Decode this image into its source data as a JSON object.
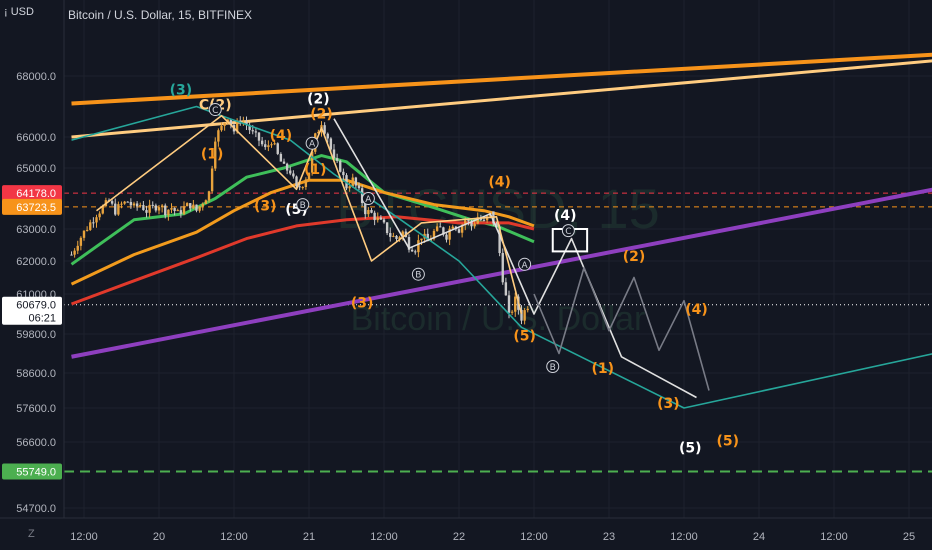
{
  "header": {
    "symbol_line": "Bitcoin / U.S. Dollar, 15, BITFINEX",
    "currency": "¡ USD",
    "zoom_mode": "Z"
  },
  "watermark": {
    "symbol": "BTCUSD, 15",
    "name": "Bitcoin / U.S. Dollar"
  },
  "colors": {
    "background": "#131722",
    "up": "#e8a33d",
    "down": "#c9c9c9",
    "sma_green": "#3fbf5a",
    "sma_orange": "#f29b1d",
    "sma_red": "#e0392b",
    "upper_channel_orange": "#f7931a",
    "upper_channel_light": "#ffcc80",
    "purple_channel": "#8e3fbf",
    "teal_wave": "#26a69a",
    "white_wave": "#e0e0e0",
    "target_green": "#4caf50"
  },
  "chart_data": {
    "type": "candlestick",
    "title": "Bitcoin / U.S. Dollar, 15, BITFINEX",
    "ylabel": "USD",
    "ylim": [
      54000,
      69000
    ],
    "y_ticks": [
      {
        "value": 68000,
        "label": "68000.0"
      },
      {
        "value": 66000,
        "label": "66000.0"
      },
      {
        "value": 65000,
        "label": "65000.0"
      },
      {
        "value": 63000,
        "label": "63000.0"
      },
      {
        "value": 62000,
        "label": "62000.0"
      },
      {
        "value": 61000,
        "label": "61000.0"
      },
      {
        "value": 59800,
        "label": "59800.0"
      },
      {
        "value": 58600,
        "label": "58600.0"
      },
      {
        "value": 57600,
        "label": "57600.0"
      },
      {
        "value": 56600,
        "label": "56600.0"
      },
      {
        "value": 54700,
        "label": "54700.0"
      }
    ],
    "x_ticks": [
      {
        "t": 12,
        "label": "12:00"
      },
      {
        "t": 24,
        "label": "20"
      },
      {
        "t": 36,
        "label": "12:00"
      },
      {
        "t": 48,
        "label": "21"
      },
      {
        "t": 60,
        "label": "12:00"
      },
      {
        "t": 72,
        "label": "22"
      },
      {
        "t": 84,
        "label": "12:00"
      },
      {
        "t": 96,
        "label": "23"
      },
      {
        "t": 108,
        "label": "12:00"
      },
      {
        "t": 120,
        "label": "24"
      },
      {
        "t": 132,
        "label": "12:00"
      },
      {
        "t": 144,
        "label": "25"
      }
    ],
    "x_unit": "hours since Nov 19 00:00",
    "price_markers": [
      {
        "value": 64178.0,
        "label": "64178.0",
        "color": "#f23645"
      },
      {
        "value": 63723.5,
        "label": "63723.5",
        "color": "#f7931a"
      },
      {
        "value": 60679.0,
        "label": "60679.0",
        "sub": "06:21",
        "color": "#ffffff"
      },
      {
        "value": 55749.0,
        "label": "55749.0",
        "color": "#4caf50"
      }
    ],
    "horizontal_lines": [
      {
        "value": 64178,
        "color": "#f23645",
        "style": "dashed"
      },
      {
        "value": 63723.5,
        "color": "#f7931a",
        "style": "dashed"
      },
      {
        "value": 60679,
        "color": "#ffffff",
        "style": "dotted"
      },
      {
        "value": 55749,
        "color": "#4caf50",
        "style": "dashed-thick"
      }
    ],
    "candles_close_path": [
      [
        10,
        62200
      ],
      [
        11,
        62600
      ],
      [
        12,
        62900
      ],
      [
        13,
        63200
      ],
      [
        14,
        63500
      ],
      [
        15,
        63700
      ],
      [
        16,
        63900
      ],
      [
        17,
        63600
      ],
      [
        18,
        63800
      ],
      [
        19,
        63900
      ],
      [
        20,
        63700
      ],
      [
        21,
        63800
      ],
      [
        22,
        63600
      ],
      [
        23,
        63700
      ],
      [
        24,
        63800
      ],
      [
        25,
        63600
      ],
      [
        26,
        63700
      ],
      [
        27,
        63500
      ],
      [
        28,
        63700
      ],
      [
        29,
        63800
      ],
      [
        30,
        63600
      ],
      [
        31,
        63900
      ],
      [
        32,
        64200
      ],
      [
        33,
        66000
      ],
      [
        34,
        66300
      ],
      [
        35,
        66700
      ],
      [
        36,
        66200
      ],
      [
        37,
        66600
      ],
      [
        38,
        66400
      ],
      [
        39,
        66100
      ],
      [
        40,
        65900
      ],
      [
        41,
        65600
      ],
      [
        42,
        65900
      ],
      [
        43,
        65400
      ],
      [
        44,
        65000
      ],
      [
        45,
        64900
      ],
      [
        46,
        64300
      ],
      [
        47,
        64500
      ],
      [
        48,
        64900
      ],
      [
        49,
        66000
      ],
      [
        50,
        66500
      ],
      [
        51,
        66000
      ],
      [
        52,
        65200
      ],
      [
        53,
        65000
      ],
      [
        54,
        64400
      ],
      [
        55,
        64600
      ],
      [
        56,
        64200
      ],
      [
        57,
        63600
      ],
      [
        58,
        63500
      ],
      [
        59,
        63300
      ],
      [
        60,
        63100
      ],
      [
        61,
        62800
      ],
      [
        62,
        62700
      ],
      [
        63,
        62900
      ],
      [
        64,
        62500
      ],
      [
        65,
        62400
      ],
      [
        66,
        62800
      ],
      [
        67,
        62600
      ],
      [
        68,
        62900
      ],
      [
        69,
        63000
      ],
      [
        70,
        62800
      ],
      [
        71,
        63200
      ],
      [
        72,
        63000
      ],
      [
        73,
        63300
      ],
      [
        74,
        63100
      ],
      [
        75,
        63400
      ],
      [
        76,
        63200
      ],
      [
        77,
        63500
      ],
      [
        78,
        63000
      ],
      [
        79,
        61500
      ],
      [
        80,
        60300
      ],
      [
        81,
        60800
      ],
      [
        82,
        60300
      ],
      [
        83,
        60679
      ]
    ],
    "series": [
      {
        "name": "",
        "type": "sma-green",
        "points": [
          [
            10,
            61900
          ],
          [
            20,
            63300
          ],
          [
            28,
            63500
          ],
          [
            33,
            64000
          ],
          [
            38,
            64700
          ],
          [
            44,
            65000
          ],
          [
            50,
            65400
          ],
          [
            54,
            65200
          ],
          [
            60,
            64200
          ],
          [
            68,
            63700
          ],
          [
            74,
            63300
          ],
          [
            78,
            63100
          ],
          [
            84,
            62600
          ]
        ]
      },
      {
        "name": "",
        "type": "sma-orange",
        "points": [
          [
            10,
            61300
          ],
          [
            20,
            62200
          ],
          [
            30,
            62900
          ],
          [
            36,
            63600
          ],
          [
            42,
            64200
          ],
          [
            48,
            64600
          ],
          [
            54,
            64600
          ],
          [
            60,
            64200
          ],
          [
            68,
            63800
          ],
          [
            76,
            63600
          ],
          [
            80,
            63400
          ],
          [
            84,
            63100
          ]
        ]
      },
      {
        "name": "",
        "type": "sma-red",
        "points": [
          [
            10,
            60700
          ],
          [
            20,
            61400
          ],
          [
            30,
            62100
          ],
          [
            38,
            62700
          ],
          [
            46,
            63100
          ],
          [
            54,
            63300
          ],
          [
            62,
            63400
          ],
          [
            72,
            63200
          ],
          [
            80,
            63200
          ],
          [
            84,
            63000
          ]
        ]
      }
    ],
    "channels": [
      {
        "name": "",
        "color": "#f7931a",
        "from": [
          10,
          67100
        ],
        "to": [
          148,
          68700
        ],
        "width": 4
      },
      {
        "name": "",
        "color": "#ffcc80",
        "from": [
          10,
          66000
        ],
        "to": [
          148,
          68500
        ],
        "width": 3
      },
      {
        "name": "",
        "color": "#8e3fbf",
        "from": [
          10,
          59100
        ],
        "to": [
          148,
          64300
        ],
        "width": 4
      }
    ],
    "wave_paths": [
      {
        "color": "#26a69a",
        "points": [
          [
            10,
            65900
          ],
          [
            30,
            67000
          ],
          [
            34,
            66700
          ],
          [
            45,
            65900
          ],
          [
            52,
            64800
          ],
          [
            62,
            63400
          ],
          [
            72,
            62000
          ],
          [
            82,
            60000
          ],
          [
            108,
            57600
          ],
          [
            148,
            59200
          ]
        ]
      },
      {
        "color": "#e0e0e0",
        "points": [
          [
            52,
            66600
          ],
          [
            64,
            62400
          ],
          [
            77,
            63500
          ],
          [
            84,
            60400
          ],
          [
            90,
            62700
          ],
          [
            98,
            59100
          ],
          [
            110,
            57900
          ]
        ]
      },
      {
        "color": "#ffcc80",
        "points": [
          [
            14,
            63600
          ],
          [
            34,
            66700
          ],
          [
            46,
            64300
          ],
          [
            50,
            66300
          ],
          [
            58,
            62000
          ],
          [
            66,
            63200
          ],
          [
            78,
            63400
          ],
          [
            82,
            60400
          ]
        ]
      },
      {
        "color": "#787b86",
        "points": [
          [
            84,
            61000
          ],
          [
            88,
            59200
          ],
          [
            92,
            61800
          ],
          [
            96,
            59900
          ],
          [
            100,
            61500
          ],
          [
            104,
            59300
          ],
          [
            108,
            60800
          ],
          [
            112,
            58100
          ]
        ]
      }
    ],
    "target_box": {
      "t1": 87,
      "t2": 92.5,
      "y_top": 63000,
      "y_bottom": 62300
    },
    "annotations": [
      {
        "text": "(3)",
        "t": 27.5,
        "y": 67400,
        "color": "#26a69a"
      },
      {
        "text": "C(2)",
        "t": 33,
        "y": 66900,
        "color": "#ffcc80"
      },
      {
        "text": "(1)",
        "t": 32.5,
        "y": 65300,
        "color": "#f7931a"
      },
      {
        "text": "(2)",
        "t": 49.5,
        "y": 67100,
        "color": "#ffffff"
      },
      {
        "text": "(2)",
        "t": 50,
        "y": 66600,
        "color": "#f7931a"
      },
      {
        "text": "(4)",
        "t": 43.5,
        "y": 65900,
        "color": "#f7931a"
      },
      {
        "text": "(1)",
        "t": 49,
        "y": 64800,
        "color": "#f7931a"
      },
      {
        "text": "(3)",
        "t": 41,
        "y": 63600,
        "color": "#f7931a"
      },
      {
        "text": "(5)",
        "t": 46,
        "y": 63500,
        "color": "#ffffff"
      },
      {
        "text": "(3)",
        "t": 56.5,
        "y": 60600,
        "color": "#f7931a"
      },
      {
        "text": "(4)",
        "t": 78.5,
        "y": 64400,
        "color": "#f7931a"
      },
      {
        "text": "(4)",
        "t": 89,
        "y": 63300,
        "color": "#ffffff"
      },
      {
        "text": "(2)",
        "t": 100,
        "y": 62000,
        "color": "#f7931a"
      },
      {
        "text": "(4)",
        "t": 110,
        "y": 60400,
        "color": "#f7931a"
      },
      {
        "text": "(5)",
        "t": 82.5,
        "y": 59600,
        "color": "#f7931a"
      },
      {
        "text": "(1)",
        "t": 95,
        "y": 58600,
        "color": "#f7931a"
      },
      {
        "text": "(3)",
        "t": 105.5,
        "y": 57600,
        "color": "#f7931a"
      },
      {
        "text": "(5)",
        "t": 109,
        "y": 56300,
        "color": "#ffffff"
      },
      {
        "text": "(5)",
        "t": 115,
        "y": 56500,
        "color": "#f7931a"
      }
    ],
    "circle_labels": [
      {
        "text": "A",
        "t": 48.5,
        "y": 65800
      },
      {
        "text": "B",
        "t": 47,
        "y": 63800
      },
      {
        "text": "A",
        "t": 57.5,
        "y": 64000
      },
      {
        "text": "B",
        "t": 65.5,
        "y": 61600
      },
      {
        "text": "A",
        "t": 82.5,
        "y": 61900
      },
      {
        "text": "B",
        "t": 87,
        "y": 58800
      },
      {
        "text": "C",
        "t": 89.5,
        "y": 62950
      },
      {
        "text": "C",
        "t": 33,
        "y": 66900
      }
    ]
  }
}
